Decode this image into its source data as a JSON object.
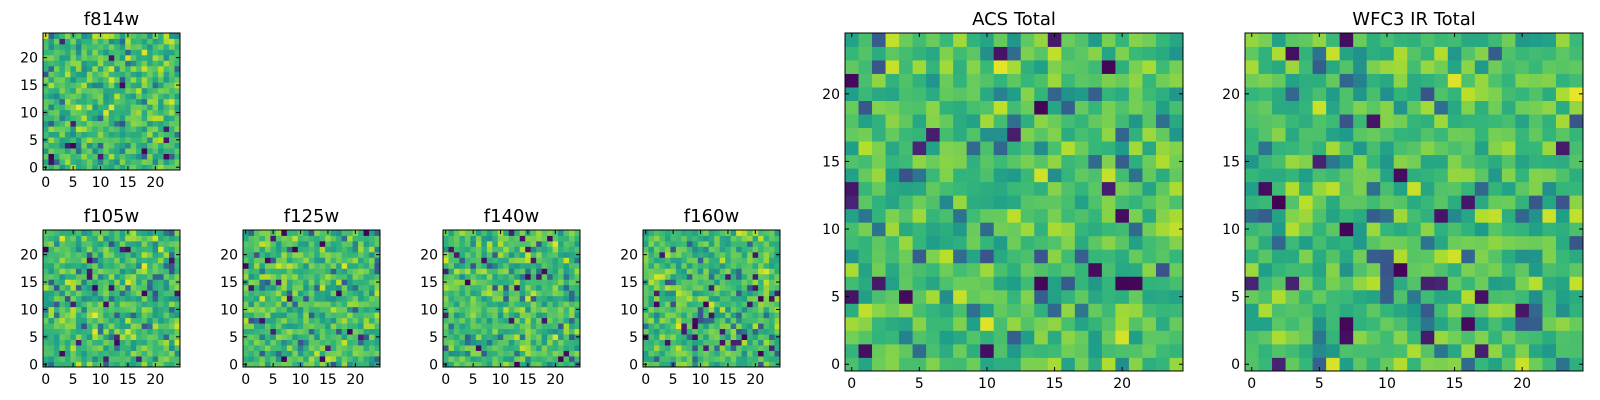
{
  "figure": {
    "description": "Grid of pixel heatmaps (viridis colormap) for HST filters and totals"
  },
  "chart_data": [
    {
      "type": "heatmap",
      "title": "f814w",
      "size": 25,
      "seed": 11,
      "xticks": [
        0,
        5,
        10,
        15,
        20
      ],
      "yticks": [
        0,
        5,
        10,
        15,
        20
      ],
      "colormap": "viridis",
      "xlim": [
        0,
        24
      ],
      "ylim": [
        0,
        24
      ]
    },
    {
      "type": "heatmap",
      "title": "f105w",
      "size": 25,
      "seed": 23,
      "xticks": [
        0,
        5,
        10,
        15,
        20
      ],
      "yticks": [
        0,
        5,
        10,
        15,
        20
      ],
      "colormap": "viridis",
      "xlim": [
        0,
        24
      ],
      "ylim": [
        0,
        24
      ]
    },
    {
      "type": "heatmap",
      "title": "f125w",
      "size": 25,
      "seed": 37,
      "xticks": [
        0,
        5,
        10,
        15,
        20
      ],
      "yticks": [
        0,
        5,
        10,
        15,
        20
      ],
      "colormap": "viridis",
      "xlim": [
        0,
        24
      ],
      "ylim": [
        0,
        24
      ]
    },
    {
      "type": "heatmap",
      "title": "f140w",
      "size": 25,
      "seed": 51,
      "xticks": [
        0,
        5,
        10,
        15,
        20
      ],
      "yticks": [
        0,
        5,
        10,
        15,
        20
      ],
      "colormap": "viridis",
      "xlim": [
        0,
        24
      ],
      "ylim": [
        0,
        24
      ]
    },
    {
      "type": "heatmap",
      "title": "f160w",
      "size": 25,
      "seed": 67,
      "xticks": [
        0,
        5,
        10,
        15,
        20
      ],
      "yticks": [
        0,
        5,
        10,
        15,
        20
      ],
      "colormap": "viridis",
      "xlim": [
        0,
        24
      ],
      "ylim": [
        0,
        24
      ]
    },
    {
      "type": "heatmap",
      "title": "ACS Total",
      "size": 25,
      "seed": 83,
      "xticks": [
        0,
        5,
        10,
        15,
        20
      ],
      "yticks": [
        0,
        5,
        10,
        15,
        20
      ],
      "colormap": "viridis",
      "xlim": [
        0,
        24
      ],
      "ylim": [
        0,
        24
      ]
    },
    {
      "type": "heatmap",
      "title": "WFC3 IR Total",
      "size": 25,
      "seed": 97,
      "xticks": [
        0,
        5,
        10,
        15,
        20
      ],
      "yticks": [
        0,
        5,
        10,
        15,
        20
      ],
      "colormap": "viridis",
      "xlim": [
        0,
        24
      ],
      "ylim": [
        0,
        24
      ]
    }
  ]
}
